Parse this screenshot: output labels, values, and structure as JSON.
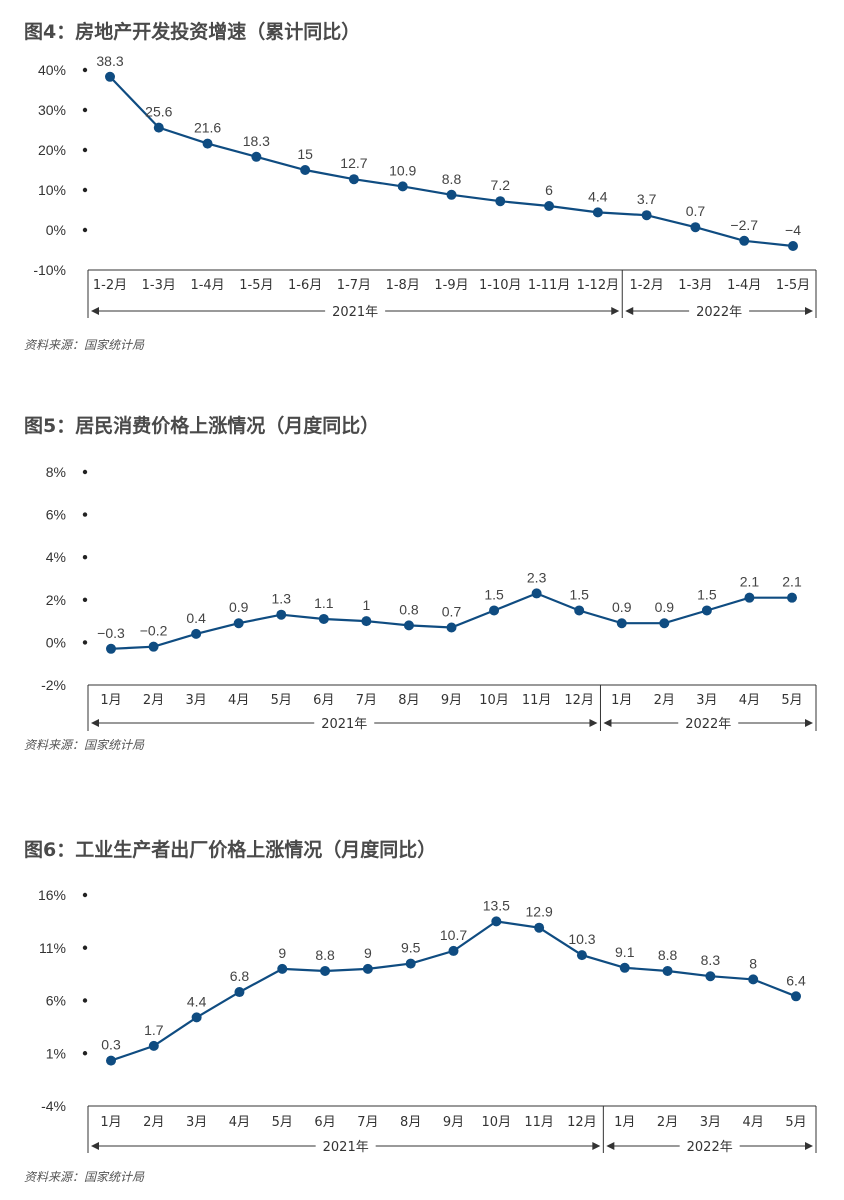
{
  "colors": {
    "line": "#0f4c81",
    "axis": "#333333",
    "text": "#444444"
  },
  "source_text": "资料来源：国家统计局",
  "chart_data": [
    {
      "type": "line",
      "title": "图4：房地产开发投资增速（累计同比）",
      "source": "资料来源：国家统计局",
      "y_ticks": [
        "40%",
        "30%",
        "20%",
        "10%",
        "0%",
        "-10%"
      ],
      "ylim": [
        -10,
        40
      ],
      "categories": [
        "1-2月",
        "1-3月",
        "1-4月",
        "1-5月",
        "1-6月",
        "1-7月",
        "1-8月",
        "1-9月",
        "1-10月",
        "1-11月",
        "1-12月",
        "1-2月",
        "1-3月",
        "1-4月",
        "1-5月"
      ],
      "values": [
        38.3,
        25.6,
        21.6,
        18.3,
        15,
        12.7,
        10.9,
        8.8,
        7.2,
        6,
        4.4,
        3.7,
        0.7,
        -2.7,
        -4
      ],
      "labels": [
        "38.3",
        "25.6",
        "21.6",
        "18.3",
        "15",
        "12.7",
        "10.9",
        "8.8",
        "7.2",
        "6",
        "4.4",
        "3.7",
        "0.7",
        "−2.7",
        "−4"
      ],
      "years": [
        {
          "label": "2021年",
          "count": 11
        },
        {
          "label": "2022年",
          "count": 4
        }
      ]
    },
    {
      "type": "line",
      "title": "图5：居民消费价格上涨情况（月度同比）",
      "source": "资料来源：国家统计局",
      "y_ticks": [
        "8%",
        "6%",
        "4%",
        "2%",
        "0%",
        "-2%"
      ],
      "ylim": [
        -2,
        8
      ],
      "categories": [
        "1月",
        "2月",
        "3月",
        "4月",
        "5月",
        "6月",
        "7月",
        "8月",
        "9月",
        "10月",
        "11月",
        "12月",
        "1月",
        "2月",
        "3月",
        "4月",
        "5月"
      ],
      "values": [
        -0.3,
        -0.2,
        0.4,
        0.9,
        1.3,
        1.1,
        1,
        0.8,
        0.7,
        1.5,
        2.3,
        1.5,
        0.9,
        0.9,
        1.5,
        2.1,
        2.1
      ],
      "labels": [
        "−0.3",
        "−0.2",
        "0.4",
        "0.9",
        "1.3",
        "1.1",
        "1",
        "0.8",
        "0.7",
        "1.5",
        "2.3",
        "1.5",
        "0.9",
        "0.9",
        "1.5",
        "2.1",
        "2.1"
      ],
      "years": [
        {
          "label": "2021年",
          "count": 12
        },
        {
          "label": "2022年",
          "count": 5
        }
      ]
    },
    {
      "type": "line",
      "title": "图6：工业生产者出厂价格上涨情况（月度同比）",
      "source": "资料来源：国家统计局",
      "y_ticks": [
        "16%",
        "11%",
        "6%",
        "1%",
        "-4%"
      ],
      "ylim": [
        -4,
        16
      ],
      "categories": [
        "1月",
        "2月",
        "3月",
        "4月",
        "5月",
        "6月",
        "7月",
        "8月",
        "9月",
        "10月",
        "11月",
        "12月",
        "1月",
        "2月",
        "3月",
        "4月",
        "5月"
      ],
      "values": [
        0.3,
        1.7,
        4.4,
        6.8,
        9,
        8.8,
        9,
        9.5,
        10.7,
        13.5,
        12.9,
        10.3,
        9.1,
        8.8,
        8.3,
        8,
        6.4
      ],
      "labels": [
        "0.3",
        "1.7",
        "4.4",
        "6.8",
        "9",
        "8.8",
        "9",
        "9.5",
        "10.7",
        "13.5",
        "12.9",
        "10.3",
        "9.1",
        "8.8",
        "8.3",
        "8",
        "6.4"
      ],
      "years": [
        {
          "label": "2021年",
          "count": 12
        },
        {
          "label": "2022年",
          "count": 5
        }
      ]
    }
  ]
}
